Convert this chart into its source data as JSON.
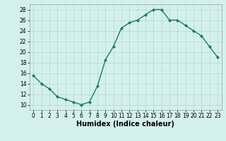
{
  "x": [
    0,
    1,
    2,
    3,
    4,
    5,
    6,
    7,
    8,
    9,
    10,
    11,
    12,
    13,
    14,
    15,
    16,
    17,
    18,
    19,
    20,
    21,
    22,
    23
  ],
  "y": [
    15.5,
    14,
    13,
    11.5,
    11,
    10.5,
    10,
    10.5,
    13.5,
    18.5,
    21,
    24.5,
    25.5,
    26,
    27,
    28,
    28,
    26,
    26,
    25,
    24,
    23,
    21,
    19
  ],
  "line_color": "#1a7a6e",
  "marker": "D",
  "marker_size": 2.0,
  "background_color": "#d4f0ec",
  "grid_color": "#b0d8d4",
  "xlabel": "Humidex (Indice chaleur)",
  "xlabel_fontsize": 7,
  "xlim": [
    -0.5,
    23.5
  ],
  "ylim": [
    9,
    29
  ],
  "yticks": [
    10,
    12,
    14,
    16,
    18,
    20,
    22,
    24,
    26,
    28
  ],
  "xticks": [
    0,
    1,
    2,
    3,
    4,
    5,
    6,
    7,
    8,
    9,
    10,
    11,
    12,
    13,
    14,
    15,
    16,
    17,
    18,
    19,
    20,
    21,
    22,
    23
  ],
  "tick_fontsize": 5.5,
  "linewidth": 1.0
}
